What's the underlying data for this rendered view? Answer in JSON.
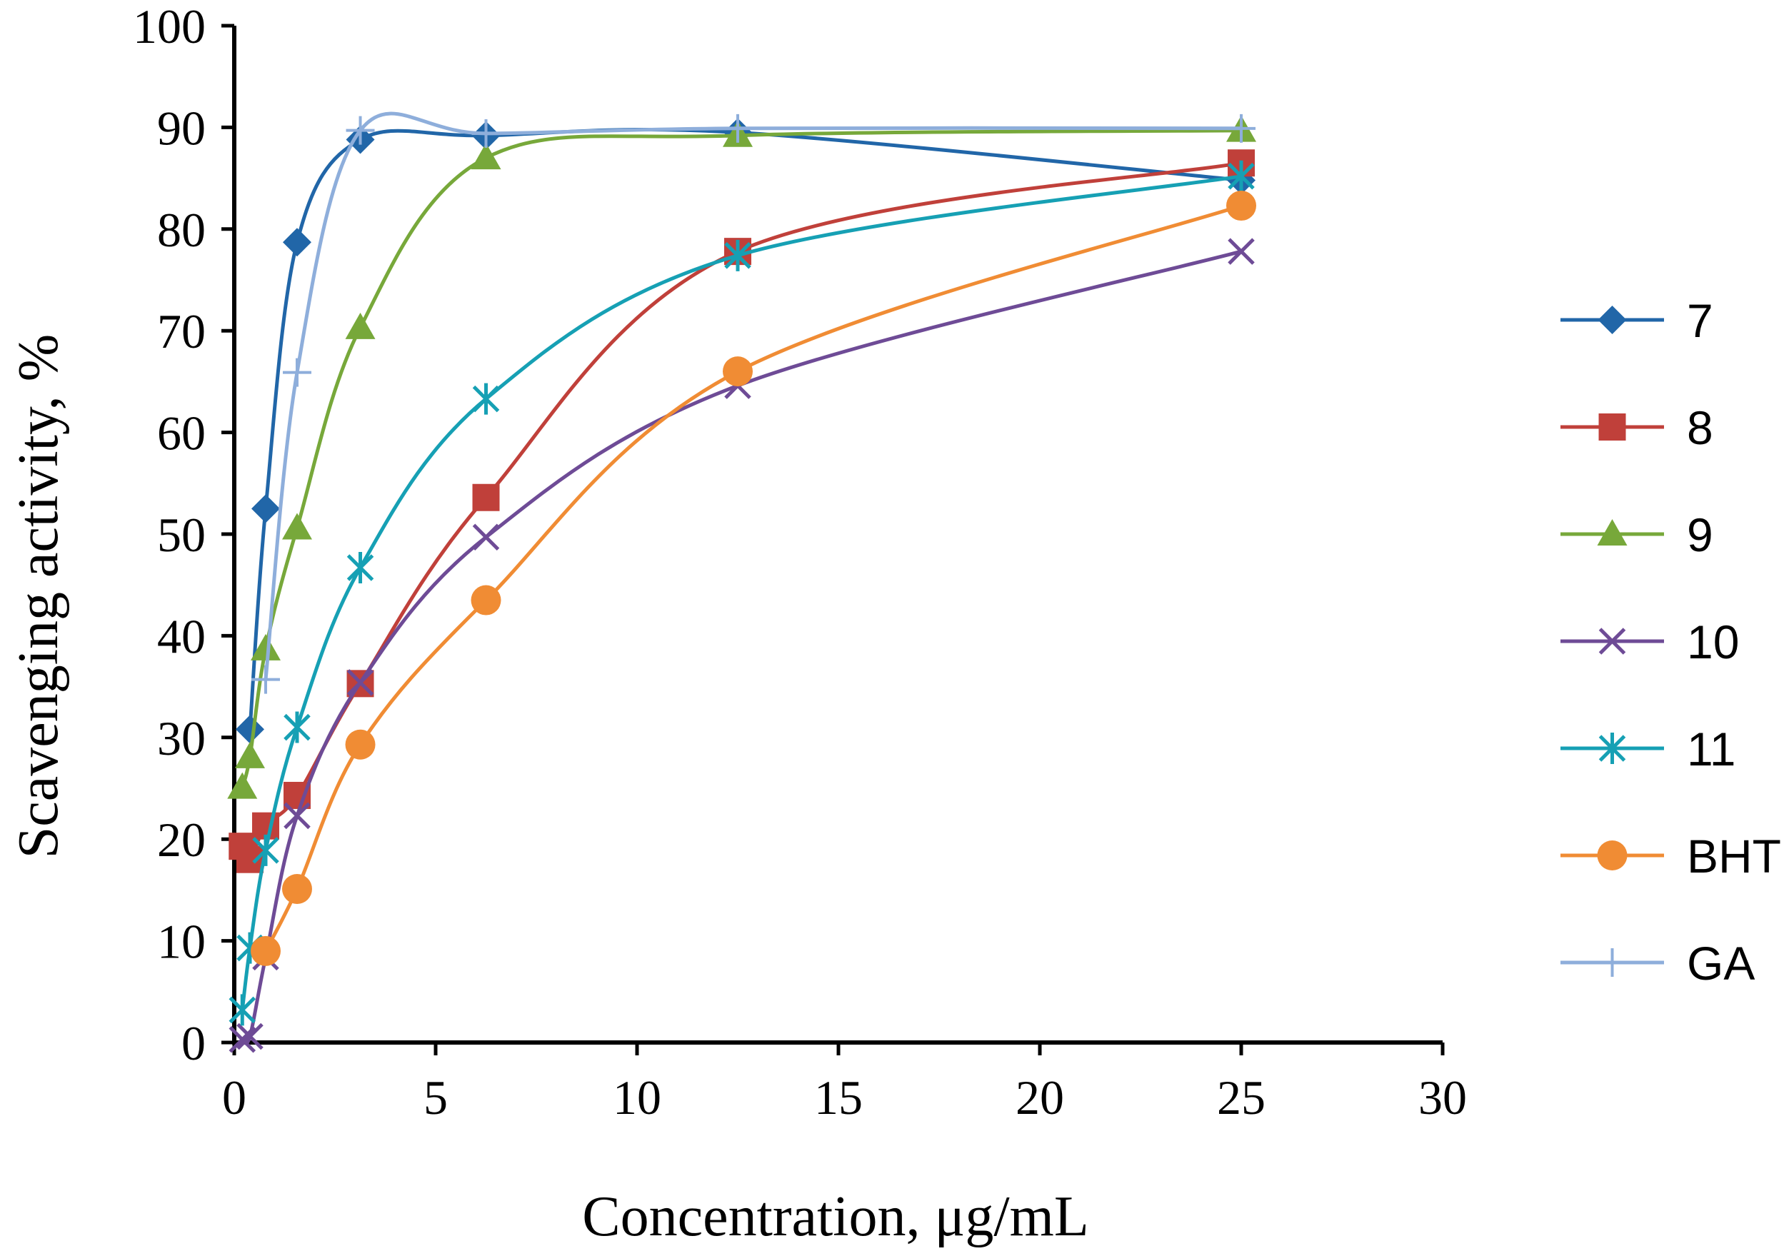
{
  "chart_data": {
    "type": "line",
    "title": "",
    "xlabel": "Concentration, μg/mL",
    "ylabel": "Scavenging activity, %",
    "xlim": [
      0,
      30
    ],
    "ylim": [
      0,
      100
    ],
    "xticks": [
      0,
      5,
      10,
      15,
      20,
      25,
      30
    ],
    "yticks": [
      0,
      10,
      20,
      30,
      40,
      50,
      60,
      70,
      80,
      90,
      100
    ],
    "grid": false,
    "legend_position": "right",
    "series": [
      {
        "name": "7",
        "color": "#2166a8",
        "marker": "diamond",
        "x": [
          0.39,
          0.78,
          1.56,
          3.13,
          6.25,
          12.5,
          25
        ],
        "y": [
          30.8,
          52.5,
          78.7,
          88.8,
          89.2,
          89.5,
          84.8
        ]
      },
      {
        "name": "8",
        "color": "#c0403a",
        "marker": "square",
        "x": [
          0.2,
          0.39,
          0.78,
          1.56,
          3.13,
          6.25,
          12.5,
          25
        ],
        "y": [
          19.3,
          18.0,
          21.3,
          24.3,
          35.3,
          53.6,
          77.8,
          86.5
        ]
      },
      {
        "name": "9",
        "color": "#77a83a",
        "marker": "triangle",
        "x": [
          0.2,
          0.39,
          0.78,
          1.56,
          3.13,
          6.25,
          12.5,
          25
        ],
        "y": [
          25.1,
          28.1,
          38.7,
          50.6,
          70.3,
          87.0,
          89.2,
          89.7
        ]
      },
      {
        "name": "10",
        "color": "#6e4b96",
        "marker": "x",
        "x": [
          0.2,
          0.39,
          0.78,
          1.56,
          3.13,
          6.25,
          12.5,
          25
        ],
        "y": [
          0.3,
          0.6,
          8.4,
          22.3,
          35.4,
          49.7,
          64.6,
          77.8
        ]
      },
      {
        "name": "11",
        "color": "#16a0b4",
        "marker": "star",
        "x": [
          0.2,
          0.39,
          0.78,
          1.56,
          3.13,
          6.25,
          12.5,
          25
        ],
        "y": [
          3.2,
          9.3,
          18.9,
          31.0,
          46.7,
          63.3,
          77.4,
          85.2
        ]
      },
      {
        "name": "BHT",
        "color": "#f08c34",
        "marker": "circle",
        "x": [
          0.78,
          1.56,
          3.13,
          6.25,
          12.5,
          25
        ],
        "y": [
          9.0,
          15.1,
          29.3,
          43.5,
          66.0,
          82.3
        ]
      },
      {
        "name": "GA",
        "color": "#8eaedb",
        "marker": "plus",
        "x": [
          0.78,
          1.56,
          3.13,
          6.25,
          12.5,
          25
        ],
        "y": [
          35.7,
          65.9,
          89.7,
          89.4,
          89.9,
          89.9
        ]
      }
    ]
  }
}
